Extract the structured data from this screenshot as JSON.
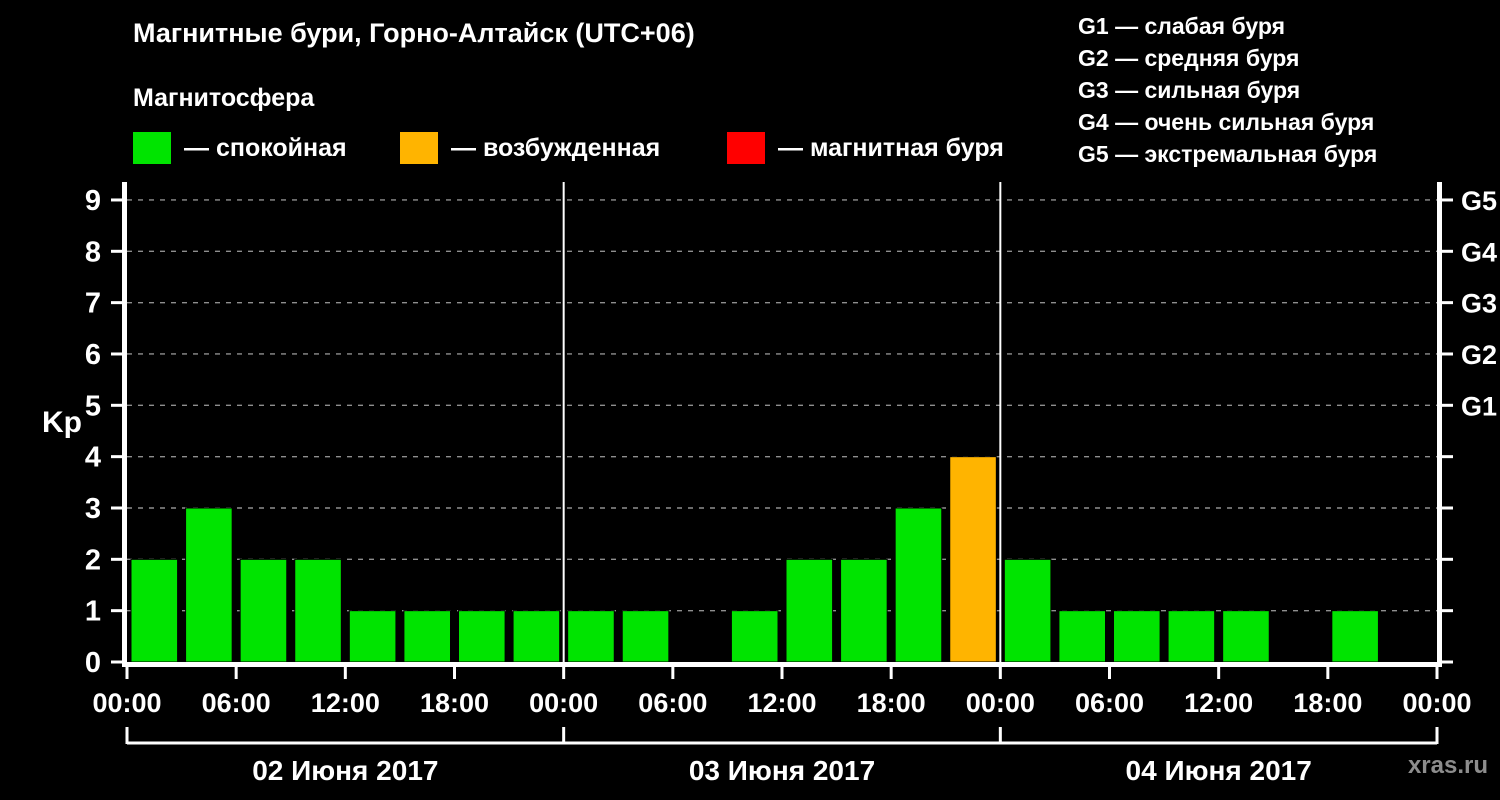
{
  "header": {
    "title": "Магнитные бури, Горно-Алтайск (UTC+06)",
    "subtitle": "Магнитосфера",
    "legend": [
      {
        "label": "— спокойная",
        "color": "#00e400"
      },
      {
        "label": "— возбужденная",
        "color": "#ffb400"
      },
      {
        "label": "— магнитная буря",
        "color": "#ff0000"
      }
    ],
    "storm_scale": [
      "G1 — слабая буря",
      "G2 — средняя буря",
      "G3 — сильная буря",
      "G4 — очень сильная буря",
      "G5 — экстремальная буря"
    ]
  },
  "watermark": "xras.ru",
  "chart_data": {
    "type": "bar",
    "title": "Магнитные бури, Горно-Алтайск (UTC+06)",
    "ylabel": "Kp",
    "ylim": [
      0,
      9.35
    ],
    "yticks": [
      0,
      1,
      2,
      3,
      4,
      5,
      6,
      7,
      8,
      9
    ],
    "right_axis": [
      {
        "label": "G5",
        "value": 9
      },
      {
        "label": "G4",
        "value": 8
      },
      {
        "label": "G3",
        "value": 7
      },
      {
        "label": "G2",
        "value": 6
      },
      {
        "label": "G1",
        "value": 5
      }
    ],
    "x_tick_labels": [
      "00:00",
      "06:00",
      "12:00",
      "18:00",
      "00:00",
      "06:00",
      "12:00",
      "18:00",
      "00:00",
      "06:00",
      "12:00",
      "18:00",
      "00:00"
    ],
    "days": [
      {
        "date": "02 Июня 2017",
        "values": [
          2,
          3,
          2,
          2,
          1,
          1,
          1,
          1
        ]
      },
      {
        "date": "03 Июня 2017",
        "values": [
          1,
          1,
          null,
          1,
          2,
          2,
          3,
          4
        ]
      },
      {
        "date": "04 Июня 2017",
        "values": [
          2,
          1,
          1,
          1,
          1,
          null,
          1,
          null
        ]
      }
    ],
    "colors": {
      "quiet": "#00e400",
      "excited": "#ffb400",
      "storm": "#ff0000"
    },
    "thresholds": {
      "quiet_max": 3,
      "excited_max": 4
    },
    "grid": {
      "color": "#8f8f8f",
      "dash": "5 6"
    },
    "legend_position": "top"
  }
}
